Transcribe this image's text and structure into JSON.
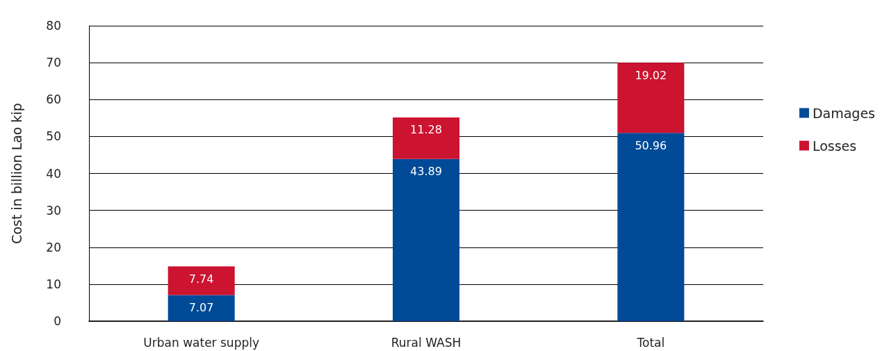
{
  "chart_data": {
    "type": "bar",
    "stacked": true,
    "ylabel": "Cost in billion Lao kip",
    "categories": [
      "Urban water supply",
      "Rural WASH",
      "Total"
    ],
    "series": [
      {
        "name": "Damages",
        "color": "#004a97",
        "values": [
          7.07,
          43.89,
          50.96
        ]
      },
      {
        "name": "Losses",
        "color": "#cc1330",
        "values": [
          7.74,
          11.28,
          19.02
        ]
      }
    ],
    "ylim": [
      0,
      80
    ],
    "yticks": [
      0,
      10,
      20,
      30,
      40,
      50,
      60,
      70,
      80
    ],
    "grid": "y",
    "legend": "right",
    "data_labels": true
  }
}
